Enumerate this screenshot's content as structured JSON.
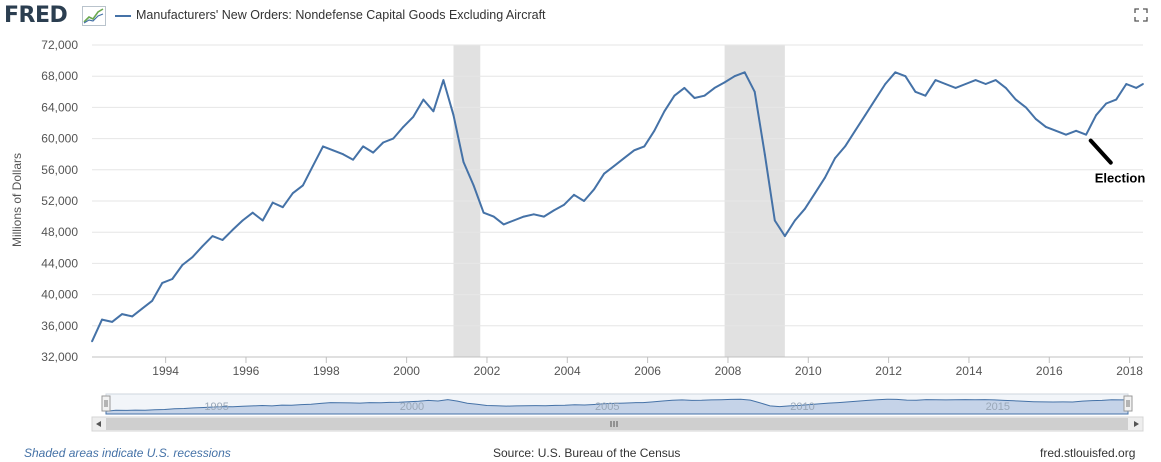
{
  "header": {
    "logo": "FRED",
    "legend_label": "Manufacturers' New Orders: Nondefense Capital Goods Excluding Aircraft"
  },
  "colors": {
    "line": "#4572a7",
    "recession": "#e1e1e1",
    "grid": "#e6e6e6",
    "navigator_fill": "#c5d3e8",
    "navigator_line": "#4572a7"
  },
  "icons": {
    "logo_graph": "chart-sparkline-icon",
    "fullscreen": "fullscreen-icon"
  },
  "footer": {
    "recession_note": "Shaded areas indicate U.S. recessions",
    "source": "Source: U.S. Bureau of the Census",
    "site": "fred.stlouisfed.org"
  },
  "chart_data": {
    "type": "line",
    "title": "",
    "xlabel": "",
    "ylabel": "Millions of Dollars",
    "xlim": [
      "1992-03",
      "2018-05"
    ],
    "ylim": [
      32000,
      72000
    ],
    "yticks": [
      32000,
      36000,
      40000,
      44000,
      48000,
      52000,
      56000,
      60000,
      64000,
      68000,
      72000
    ],
    "ytick_labels": [
      "32,000",
      "36,000",
      "40,000",
      "44,000",
      "48,000",
      "52,000",
      "56,000",
      "60,000",
      "64,000",
      "68,000",
      "72,000"
    ],
    "xtick_labels": [
      "1994",
      "1996",
      "1998",
      "2000",
      "2002",
      "2004",
      "2006",
      "2008",
      "2010",
      "2012",
      "2014",
      "2016",
      "2018"
    ],
    "grid": true,
    "legend_position": "top-left",
    "recessions": [
      [
        "2001-03",
        "2001-11"
      ],
      [
        "2007-12",
        "2009-06"
      ]
    ],
    "annotations": [
      {
        "text": "Election",
        "x": "2016-11",
        "y": 60000
      }
    ],
    "navigator_labels": [
      "1995",
      "2000",
      "2005",
      "2010",
      "2015"
    ],
    "series": [
      {
        "name": "Manufacturers' New Orders: Nondefense Capital Goods Excluding Aircraft",
        "x": [
          "1992-03",
          "1992-06",
          "1992-09",
          "1992-12",
          "1993-03",
          "1993-06",
          "1993-09",
          "1993-12",
          "1994-03",
          "1994-06",
          "1994-09",
          "1994-12",
          "1995-03",
          "1995-06",
          "1995-09",
          "1995-12",
          "1996-03",
          "1996-06",
          "1996-09",
          "1996-12",
          "1997-03",
          "1997-06",
          "1997-09",
          "1997-12",
          "1998-03",
          "1998-06",
          "1998-09",
          "1998-12",
          "1999-03",
          "1999-06",
          "1999-09",
          "1999-12",
          "2000-03",
          "2000-06",
          "2000-09",
          "2000-12",
          "2001-03",
          "2001-06",
          "2001-09",
          "2001-12",
          "2002-03",
          "2002-06",
          "2002-09",
          "2002-12",
          "2003-03",
          "2003-06",
          "2003-09",
          "2003-12",
          "2004-03",
          "2004-06",
          "2004-09",
          "2004-12",
          "2005-03",
          "2005-06",
          "2005-09",
          "2005-12",
          "2006-03",
          "2006-06",
          "2006-09",
          "2006-12",
          "2007-03",
          "2007-06",
          "2007-09",
          "2007-12",
          "2008-03",
          "2008-06",
          "2008-09",
          "2008-12",
          "2009-03",
          "2009-06",
          "2009-09",
          "2009-12",
          "2010-03",
          "2010-06",
          "2010-09",
          "2010-12",
          "2011-03",
          "2011-06",
          "2011-09",
          "2011-12",
          "2012-03",
          "2012-06",
          "2012-09",
          "2012-12",
          "2013-03",
          "2013-06",
          "2013-09",
          "2013-12",
          "2014-03",
          "2014-06",
          "2014-09",
          "2014-12",
          "2015-03",
          "2015-06",
          "2015-09",
          "2015-12",
          "2016-03",
          "2016-06",
          "2016-09",
          "2016-12",
          "2017-03",
          "2017-06",
          "2017-09",
          "2017-12",
          "2018-03",
          "2018-05"
        ],
        "values": [
          34000,
          36800,
          36500,
          37500,
          37200,
          38200,
          39200,
          41500,
          42000,
          43800,
          44800,
          46200,
          47500,
          47000,
          48300,
          49500,
          50500,
          49500,
          51800,
          51200,
          53000,
          54000,
          56500,
          59000,
          58500,
          58000,
          57300,
          59000,
          58200,
          59500,
          60000,
          61500,
          62800,
          65000,
          63500,
          67500,
          63000,
          57000,
          54000,
          50500,
          50000,
          49000,
          49500,
          50000,
          50300,
          50000,
          50800,
          51500,
          52800,
          52000,
          53500,
          55500,
          56500,
          57500,
          58500,
          59000,
          61000,
          63500,
          65500,
          66500,
          65200,
          65500,
          66500,
          67200,
          68000,
          68500,
          66000,
          58000,
          49500,
          47500,
          49500,
          51000,
          53000,
          55000,
          57500,
          59000,
          61000,
          63000,
          65000,
          67000,
          68500,
          68000,
          66000,
          65500,
          67500,
          67000,
          66500,
          67000,
          67500,
          67000,
          67500,
          66500,
          65000,
          64000,
          62500,
          61500,
          61000,
          60500,
          61000,
          60500,
          63000,
          64500,
          65000,
          67000,
          66500,
          67000
        ]
      }
    ]
  }
}
